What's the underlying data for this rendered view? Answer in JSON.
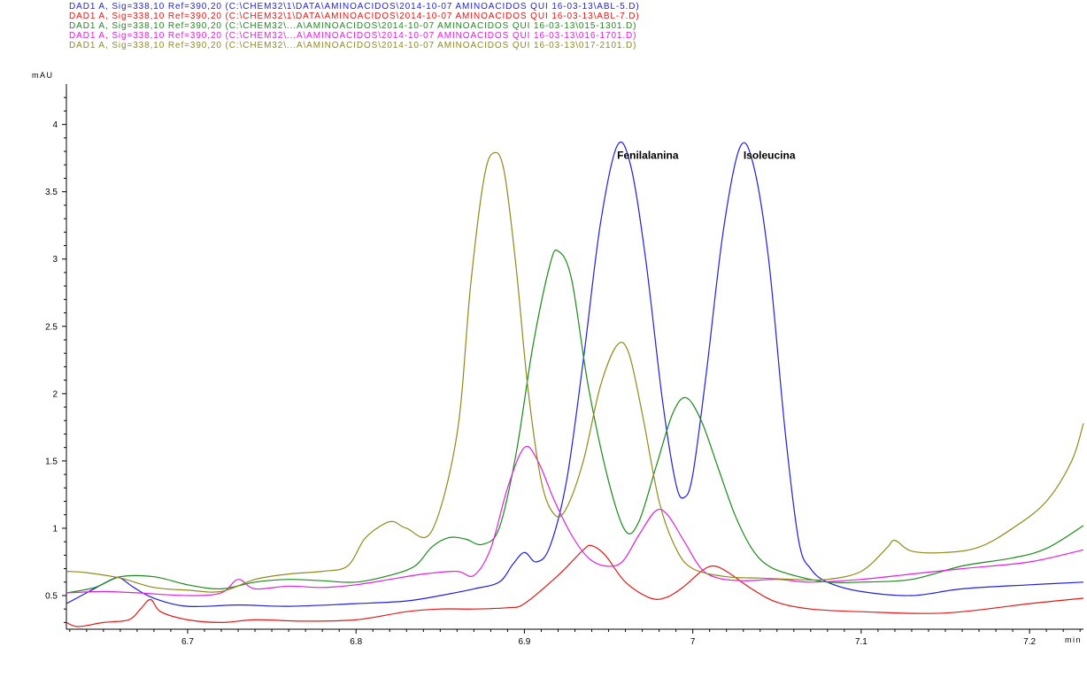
{
  "legend": [
    {
      "text": "DAD1 A, Sig=338,10 Ref=390,20 (C:\\CHEM32\\1\\DATA\\AMINOACIDOS\\2014-10-07 AMINOACIDOS QUI 16-03-13\\ABL-5.D)",
      "color": "#1f1fdd"
    },
    {
      "text": "DAD1 A, Sig=338,10 Ref=390,20 (C:\\CHEM32\\1\\DATA\\AMINOACIDOS\\2014-10-07 AMINOACIDOS QUI 16-03-13\\ABL-7.D)",
      "color": "#e01818"
    },
    {
      "text": "DAD1 A, Sig=338,10 Ref=390,20 (C:\\CHEM32\\...A\\AMINOACIDOS\\2014-10-07 AMINOACIDOS QUI 16-03-13\\015-1301.D)",
      "color": "#1b8a1b"
    },
    {
      "text": "DAD1 A, Sig=338,10 Ref=390,20 (C:\\CHEM32\\...A\\AMINOACIDOS\\2014-10-07 AMINOACIDOS QUI 16-03-13\\016-1701.D)",
      "color": "#e020e0"
    },
    {
      "text": "DAD1 A, Sig=338,10 Ref=390,20 (C:\\CHEM32\\...A\\AMINOACIDOS\\2014-10-07 AMINOACIDOS QUI 16-03-13\\017-2101.D)",
      "color": "#8f8a1a"
    }
  ],
  "chart_data": {
    "type": "line",
    "ylabel": "mAU",
    "xlabel": "min",
    "xlim": [
      6.628,
      7.232
    ],
    "ylim": [
      0.25,
      4.3
    ],
    "xticks": [
      "6.7",
      "6.8",
      "6.9",
      "7",
      "7.1",
      "7.2"
    ],
    "yticks": [
      "0.5",
      "1",
      "1.5",
      "2",
      "2.5",
      "3",
      "3.5",
      "4"
    ],
    "grid": false,
    "annotations": [
      {
        "text": "Fenilalanina",
        "x": 6.954,
        "y": 3.77
      },
      {
        "text": "Isoleucina",
        "x": 7.029,
        "y": 3.77
      }
    ],
    "series": [
      {
        "name": "ABL-5.D",
        "color": "#1f1fdd",
        "points": [
          [
            6.628,
            0.44
          ],
          [
            6.64,
            0.52
          ],
          [
            6.655,
            0.62
          ],
          [
            6.66,
            0.63
          ],
          [
            6.668,
            0.56
          ],
          [
            6.68,
            0.48
          ],
          [
            6.7,
            0.42
          ],
          [
            6.73,
            0.43
          ],
          [
            6.76,
            0.42
          ],
          [
            6.8,
            0.44
          ],
          [
            6.83,
            0.46
          ],
          [
            6.85,
            0.5
          ],
          [
            6.87,
            0.55
          ],
          [
            6.885,
            0.6
          ],
          [
            6.893,
            0.73
          ],
          [
            6.9,
            0.82
          ],
          [
            6.907,
            0.75
          ],
          [
            6.915,
            0.86
          ],
          [
            6.925,
            1.35
          ],
          [
            6.935,
            2.25
          ],
          [
            6.945,
            3.25
          ],
          [
            6.955,
            3.84
          ],
          [
            6.963,
            3.7
          ],
          [
            6.972,
            3.0
          ],
          [
            6.982,
            1.95
          ],
          [
            6.99,
            1.33
          ],
          [
            6.995,
            1.23
          ],
          [
            7.0,
            1.4
          ],
          [
            7.008,
            2.15
          ],
          [
            7.018,
            3.2
          ],
          [
            7.028,
            3.83
          ],
          [
            7.036,
            3.7
          ],
          [
            7.045,
            3.0
          ],
          [
            7.055,
            1.7
          ],
          [
            7.063,
            0.9
          ],
          [
            7.07,
            0.7
          ],
          [
            7.08,
            0.6
          ],
          [
            7.1,
            0.53
          ],
          [
            7.13,
            0.5
          ],
          [
            7.16,
            0.55
          ],
          [
            7.2,
            0.58
          ],
          [
            7.232,
            0.6
          ]
        ]
      },
      {
        "name": "ABL-7.D",
        "color": "#e01818",
        "points": [
          [
            6.628,
            0.3
          ],
          [
            6.635,
            0.27
          ],
          [
            6.65,
            0.3
          ],
          [
            6.665,
            0.32
          ],
          [
            6.672,
            0.4
          ],
          [
            6.678,
            0.47
          ],
          [
            6.684,
            0.38
          ],
          [
            6.7,
            0.32
          ],
          [
            6.72,
            0.3
          ],
          [
            6.74,
            0.32
          ],
          [
            6.77,
            0.31
          ],
          [
            6.8,
            0.32
          ],
          [
            6.83,
            0.38
          ],
          [
            6.85,
            0.4
          ],
          [
            6.87,
            0.4
          ],
          [
            6.89,
            0.41
          ],
          [
            6.9,
            0.44
          ],
          [
            6.92,
            0.65
          ],
          [
            6.935,
            0.84
          ],
          [
            6.94,
            0.87
          ],
          [
            6.948,
            0.8
          ],
          [
            6.96,
            0.6
          ],
          [
            6.975,
            0.48
          ],
          [
            6.985,
            0.49
          ],
          [
            6.995,
            0.57
          ],
          [
            7.005,
            0.68
          ],
          [
            7.012,
            0.72
          ],
          [
            7.02,
            0.68
          ],
          [
            7.035,
            0.55
          ],
          [
            7.05,
            0.45
          ],
          [
            7.07,
            0.4
          ],
          [
            7.1,
            0.38
          ],
          [
            7.15,
            0.37
          ],
          [
            7.2,
            0.44
          ],
          [
            7.232,
            0.48
          ]
        ]
      },
      {
        "name": "015-1301.D",
        "color": "#1b8a1b",
        "points": [
          [
            6.628,
            0.52
          ],
          [
            6.645,
            0.56
          ],
          [
            6.66,
            0.64
          ],
          [
            6.68,
            0.64
          ],
          [
            6.7,
            0.58
          ],
          [
            6.72,
            0.55
          ],
          [
            6.74,
            0.6
          ],
          [
            6.76,
            0.62
          ],
          [
            6.78,
            0.61
          ],
          [
            6.8,
            0.6
          ],
          [
            6.82,
            0.65
          ],
          [
            6.835,
            0.72
          ],
          [
            6.845,
            0.86
          ],
          [
            6.855,
            0.93
          ],
          [
            6.865,
            0.92
          ],
          [
            6.875,
            0.88
          ],
          [
            6.885,
            1.0
          ],
          [
            6.895,
            1.55
          ],
          [
            6.905,
            2.35
          ],
          [
            6.915,
            2.95
          ],
          [
            6.92,
            3.06
          ],
          [
            6.928,
            2.85
          ],
          [
            6.938,
            2.05
          ],
          [
            6.95,
            1.35
          ],
          [
            6.96,
            0.98
          ],
          [
            6.968,
            1.05
          ],
          [
            6.978,
            1.45
          ],
          [
            6.988,
            1.85
          ],
          [
            6.996,
            1.97
          ],
          [
            7.005,
            1.8
          ],
          [
            7.015,
            1.45
          ],
          [
            7.025,
            1.1
          ],
          [
            7.035,
            0.85
          ],
          [
            7.045,
            0.72
          ],
          [
            7.06,
            0.65
          ],
          [
            7.08,
            0.6
          ],
          [
            7.1,
            0.6
          ],
          [
            7.13,
            0.62
          ],
          [
            7.16,
            0.72
          ],
          [
            7.19,
            0.78
          ],
          [
            7.21,
            0.85
          ],
          [
            7.232,
            1.02
          ]
        ]
      },
      {
        "name": "016-1701.D",
        "color": "#e020e0",
        "points": [
          [
            6.628,
            0.52
          ],
          [
            6.65,
            0.53
          ],
          [
            6.67,
            0.52
          ],
          [
            6.7,
            0.5
          ],
          [
            6.72,
            0.52
          ],
          [
            6.73,
            0.62
          ],
          [
            6.74,
            0.55
          ],
          [
            6.76,
            0.57
          ],
          [
            6.78,
            0.56
          ],
          [
            6.8,
            0.58
          ],
          [
            6.82,
            0.62
          ],
          [
            6.84,
            0.66
          ],
          [
            6.86,
            0.68
          ],
          [
            6.87,
            0.65
          ],
          [
            6.88,
            0.85
          ],
          [
            6.89,
            1.3
          ],
          [
            6.9,
            1.6
          ],
          [
            6.908,
            1.5
          ],
          [
            6.918,
            1.2
          ],
          [
            6.928,
            0.95
          ],
          [
            6.938,
            0.78
          ],
          [
            6.948,
            0.72
          ],
          [
            6.958,
            0.75
          ],
          [
            6.968,
            0.95
          ],
          [
            6.978,
            1.13
          ],
          [
            6.985,
            1.1
          ],
          [
            6.995,
            0.9
          ],
          [
            7.005,
            0.7
          ],
          [
            7.015,
            0.63
          ],
          [
            7.03,
            0.61
          ],
          [
            7.05,
            0.62
          ],
          [
            7.07,
            0.6
          ],
          [
            7.1,
            0.62
          ],
          [
            7.13,
            0.66
          ],
          [
            7.16,
            0.7
          ],
          [
            7.2,
            0.75
          ],
          [
            7.232,
            0.84
          ]
        ]
      },
      {
        "name": "017-2101.D",
        "color": "#8f8a1a",
        "points": [
          [
            6.628,
            0.68
          ],
          [
            6.64,
            0.67
          ],
          [
            6.66,
            0.63
          ],
          [
            6.68,
            0.56
          ],
          [
            6.7,
            0.54
          ],
          [
            6.72,
            0.53
          ],
          [
            6.74,
            0.62
          ],
          [
            6.76,
            0.66
          ],
          [
            6.78,
            0.68
          ],
          [
            6.795,
            0.72
          ],
          [
            6.805,
            0.92
          ],
          [
            6.815,
            1.02
          ],
          [
            6.822,
            1.05
          ],
          [
            6.83,
            1.0
          ],
          [
            6.845,
            0.98
          ],
          [
            6.86,
            1.7
          ],
          [
            6.868,
            2.8
          ],
          [
            6.876,
            3.6
          ],
          [
            6.882,
            3.79
          ],
          [
            6.888,
            3.65
          ],
          [
            6.895,
            2.95
          ],
          [
            6.902,
            2.05
          ],
          [
            6.91,
            1.35
          ],
          [
            6.918,
            1.1
          ],
          [
            6.925,
            1.15
          ],
          [
            6.935,
            1.5
          ],
          [
            6.945,
            2.05
          ],
          [
            6.955,
            2.36
          ],
          [
            6.962,
            2.3
          ],
          [
            6.97,
            1.85
          ],
          [
            6.98,
            1.2
          ],
          [
            6.99,
            0.85
          ],
          [
            7.0,
            0.7
          ],
          [
            7.02,
            0.64
          ],
          [
            7.04,
            0.63
          ],
          [
            7.06,
            0.62
          ],
          [
            7.08,
            0.62
          ],
          [
            7.1,
            0.68
          ],
          [
            7.115,
            0.85
          ],
          [
            7.12,
            0.91
          ],
          [
            7.13,
            0.83
          ],
          [
            7.15,
            0.82
          ],
          [
            7.17,
            0.86
          ],
          [
            7.19,
            1.0
          ],
          [
            7.21,
            1.2
          ],
          [
            7.225,
            1.5
          ],
          [
            7.232,
            1.78
          ]
        ]
      }
    ]
  }
}
